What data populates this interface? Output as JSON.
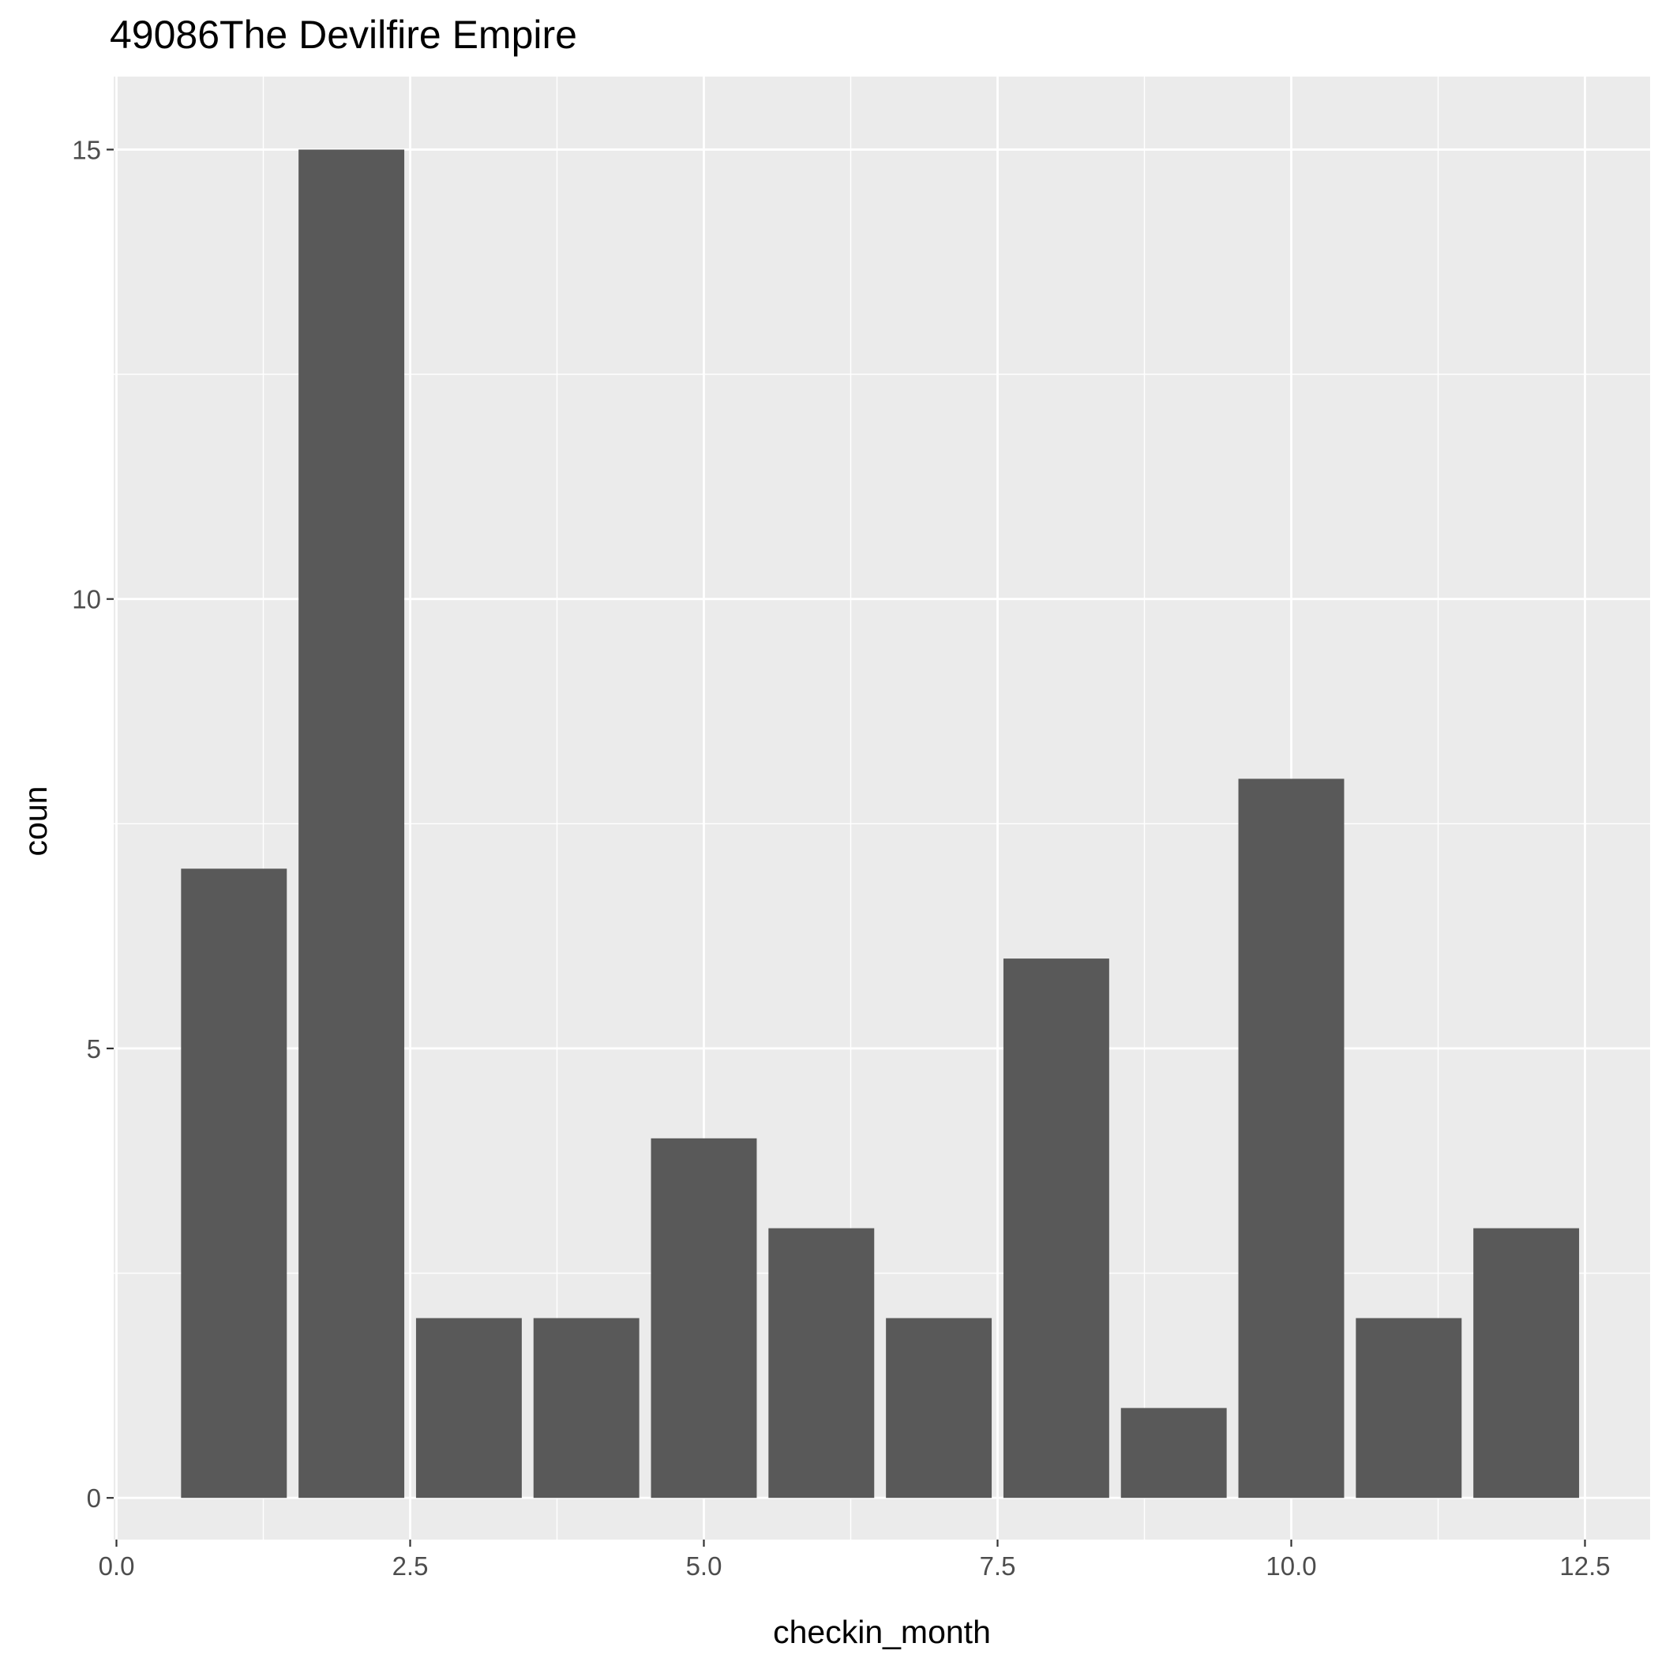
{
  "chart_data": {
    "type": "bar",
    "title": "49086The Devilfire Empire",
    "xlabel": "checkin_month",
    "ylabel": "coun",
    "x": [
      1,
      2,
      3,
      4,
      5,
      6,
      7,
      8,
      9,
      10,
      11,
      12
    ],
    "values": [
      7,
      15,
      2,
      2,
      4,
      3,
      2,
      6,
      1,
      8,
      2,
      3
    ],
    "bar_width": 0.9,
    "xlim": [
      0,
      12.95
    ],
    "ylim": [
      -0.75,
      15.75
    ],
    "x_ticks": [
      0,
      2.5,
      5,
      7.5,
      10,
      12.5
    ],
    "x_tick_labels": [
      "0.0",
      "2.5",
      "5.0",
      "7.5",
      "10.0",
      "12.5"
    ],
    "y_ticks": [
      0,
      5,
      10,
      15
    ],
    "y_tick_labels": [
      "0",
      "5",
      "10",
      "15"
    ],
    "grid": true,
    "legend": "none",
    "colors": {
      "bar": "#595959",
      "panel": "#ebebeb",
      "grid": "#ffffff",
      "tick_text": "#4d4d4d",
      "tick_mark": "#333333",
      "text": "#000000"
    }
  }
}
